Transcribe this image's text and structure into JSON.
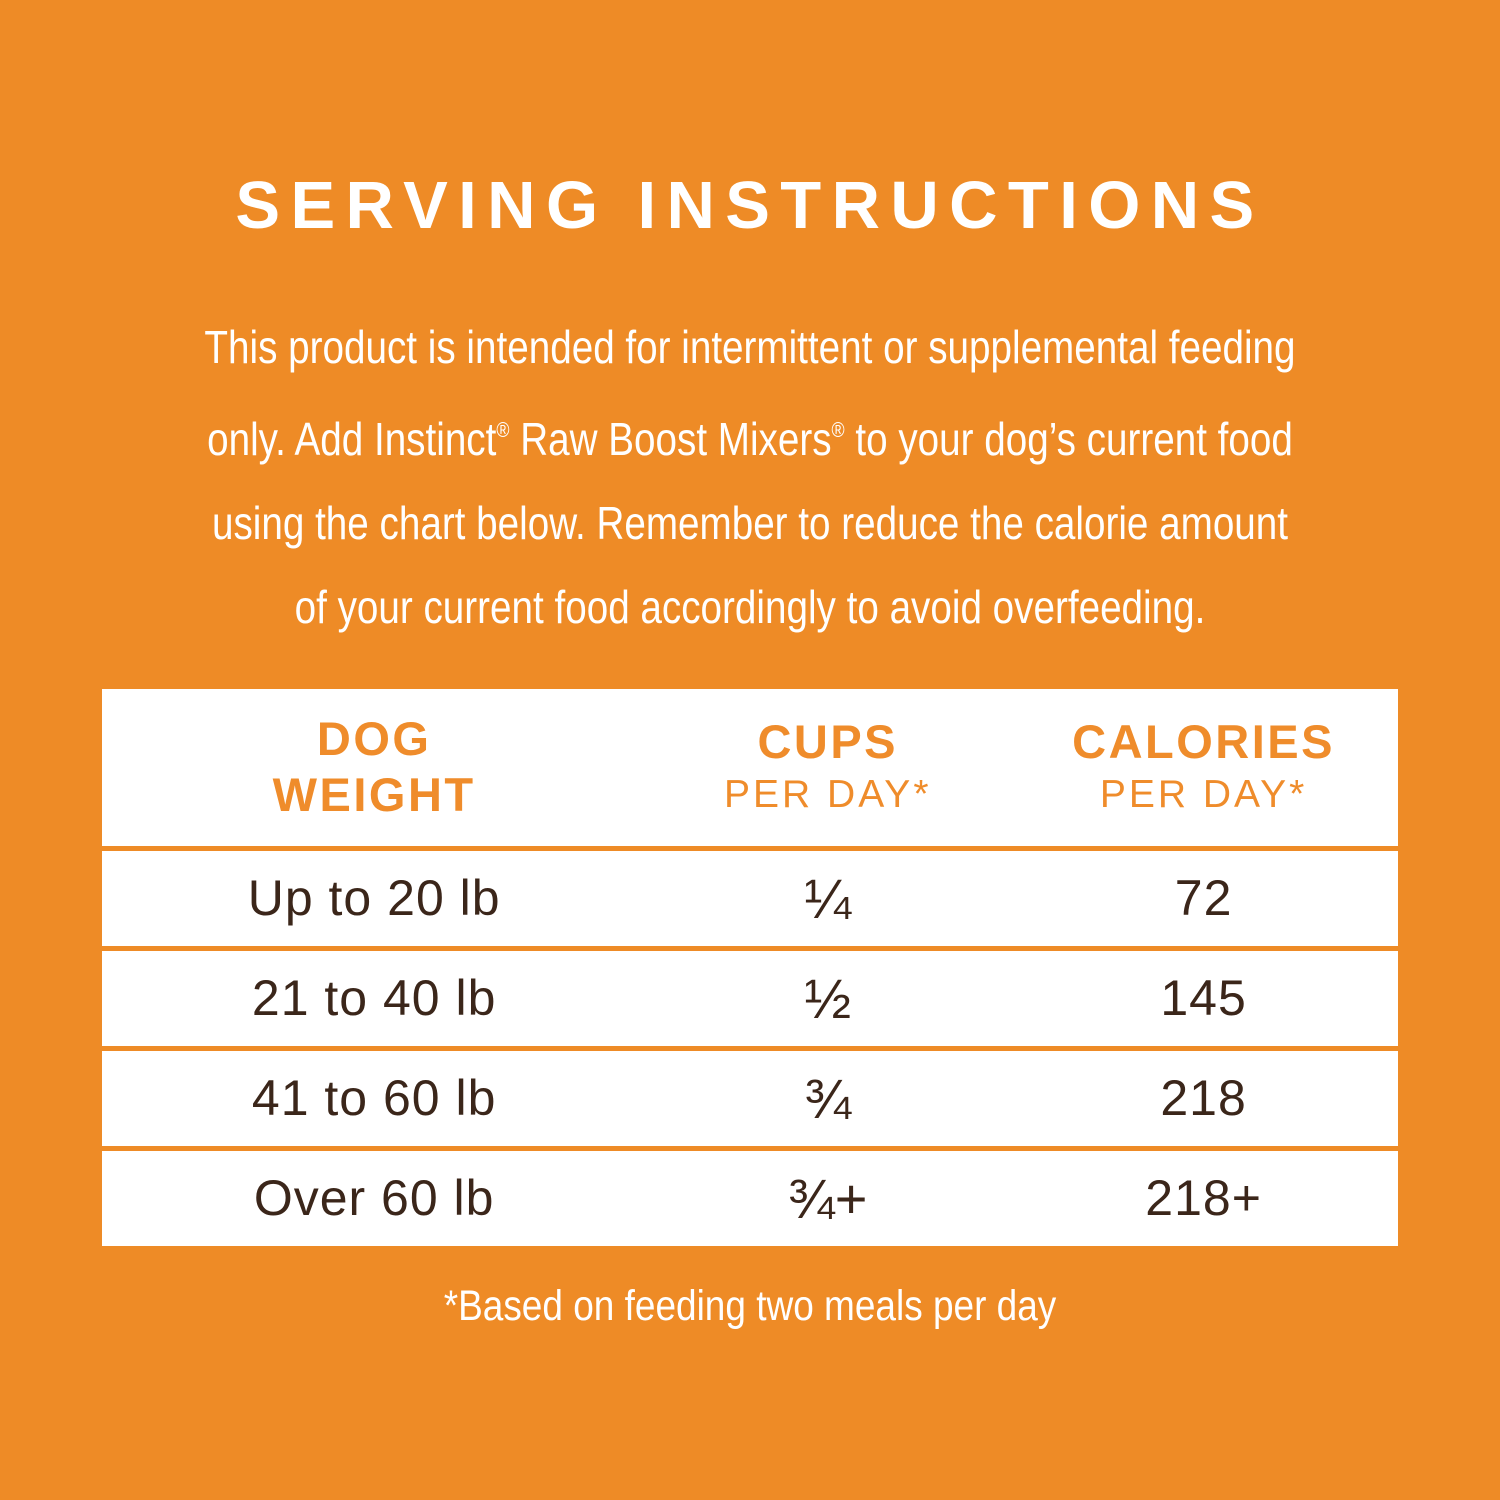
{
  "colors": {
    "background": "#EE8B26",
    "accent_orange": "#EF8C2B",
    "body_brown": "#3B261A",
    "white": "#FFFFFF"
  },
  "title": "SERVING INSTRUCTIONS",
  "intro": {
    "line1": "This product is intended for intermittent or supplemental feeding",
    "line2": {
      "seg1": "only. Add Instinct",
      "reg1": "®",
      "seg2": " Raw Boost Mixers",
      "reg2": "®",
      "seg3": " to your dog’s current food"
    },
    "line3": "using the chart below. Remember to reduce the calorie amount",
    "line4": "of your current food accordingly to avoid overfeeding."
  },
  "table": {
    "header": {
      "col1": {
        "line1": "DOG",
        "line2": "WEIGHT"
      },
      "col2": {
        "line1": "CUPS",
        "line2": "PER DAY*"
      },
      "col3": {
        "line1": "CALORIES",
        "line2": "PER DAY*"
      }
    },
    "rows": [
      {
        "weight": "Up to 20 lb",
        "cups": "¼",
        "calories": "72"
      },
      {
        "weight": "21 to 40 lb",
        "cups": "½",
        "calories": "145"
      },
      {
        "weight": "41 to 60 lb",
        "cups": "¾",
        "calories": "218"
      },
      {
        "weight": "Over 60 lb",
        "cups": "¾+",
        "calories": "218+"
      }
    ]
  },
  "footnote": "*Based on feeding two meals per day"
}
